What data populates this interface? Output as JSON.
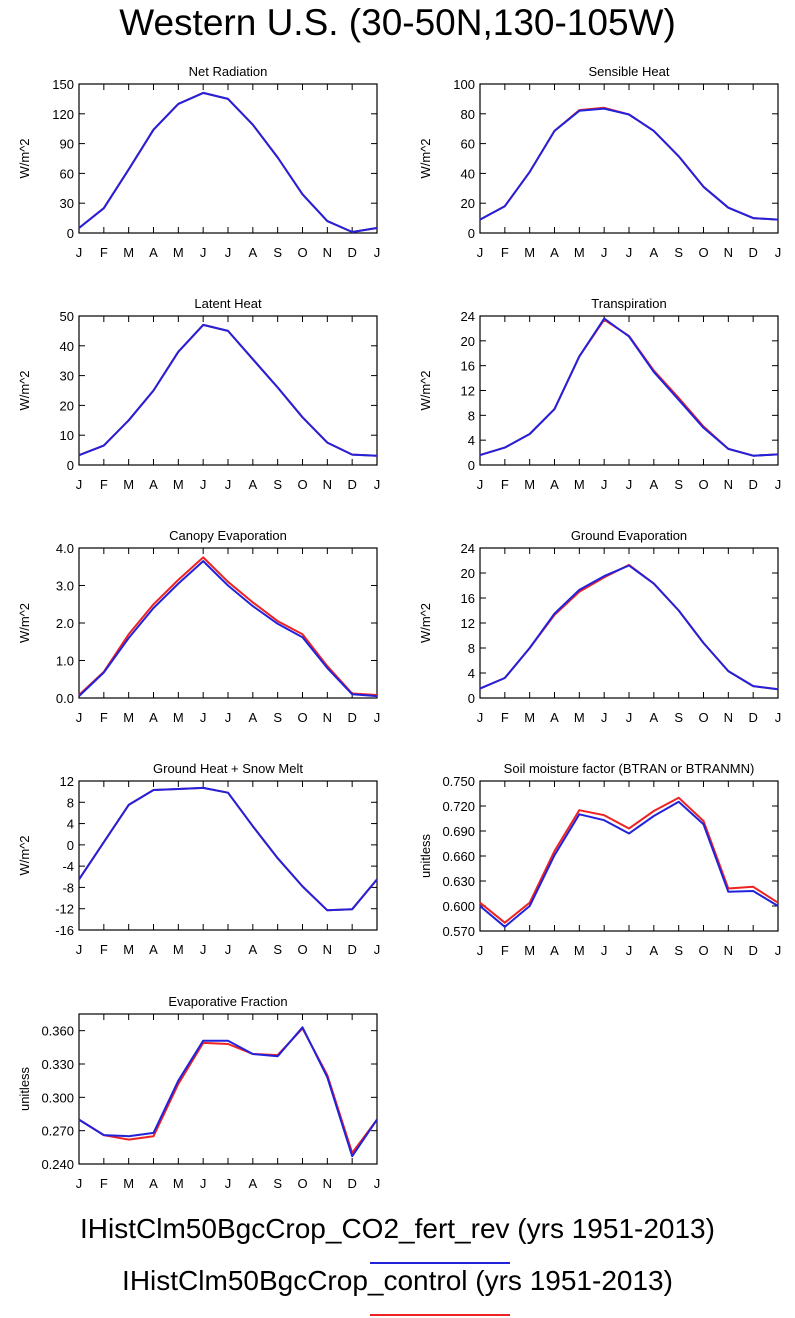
{
  "title": "Western U.S. (30-50N,130-105W)",
  "months": [
    "J",
    "F",
    "M",
    "A",
    "M",
    "J",
    "J",
    "A",
    "S",
    "O",
    "N",
    "D",
    "J"
  ],
  "legend": [
    {
      "label": "IHistClm50BgcCrop_CO2_fert_rev (yrs 1951-2013)",
      "color": "#2222dd"
    },
    {
      "label": "IHistClm50BgcCrop_control (yrs 1951-2013)",
      "color": "#ee2222"
    }
  ],
  "chart_data": [
    {
      "type": "line",
      "title": "Net Radiation",
      "ylabel": "W/m^2",
      "ylim": [
        0,
        150
      ],
      "yticks": [
        "0",
        "30",
        "60",
        "90",
        "120",
        "150"
      ],
      "categories": [
        "J",
        "F",
        "M",
        "A",
        "M",
        "J",
        "J",
        "A",
        "S",
        "O",
        "N",
        "D",
        "J"
      ],
      "series": [
        {
          "name": "IHistClm50BgcCrop_control",
          "color": "#ee2222",
          "values": [
            5,
            25,
            64,
            104,
            130,
            141,
            135,
            109,
            76,
            39,
            12,
            1,
            5
          ]
        },
        {
          "name": "IHistClm50BgcCrop_CO2_fert_rev",
          "color": "#2222dd",
          "values": [
            5,
            25,
            64,
            104,
            130,
            141,
            135,
            109,
            76,
            39,
            12,
            1,
            5
          ]
        }
      ]
    },
    {
      "type": "line",
      "title": "Sensible Heat",
      "ylabel": "W/m^2",
      "ylim": [
        0,
        100
      ],
      "yticks": [
        "0",
        "20",
        "40",
        "60",
        "80",
        "100"
      ],
      "categories": [
        "J",
        "F",
        "M",
        "A",
        "M",
        "J",
        "J",
        "A",
        "S",
        "O",
        "N",
        "D",
        "J"
      ],
      "series": [
        {
          "name": "IHistClm50BgcCrop_control",
          "color": "#ee2222",
          "values": [
            9,
            18,
            41,
            68.5,
            82.5,
            84,
            79.5,
            68.5,
            51.5,
            31,
            17,
            10,
            9
          ]
        },
        {
          "name": "IHistClm50BgcCrop_CO2_fert_rev",
          "color": "#2222dd",
          "values": [
            9,
            18,
            41,
            68.5,
            82,
            83.5,
            79.5,
            68.5,
            51.5,
            31,
            17,
            10,
            9
          ]
        }
      ]
    },
    {
      "type": "line",
      "title": "Latent Heat",
      "ylabel": "W/m^2",
      "ylim": [
        0,
        50
      ],
      "yticks": [
        "0",
        "10",
        "20",
        "30",
        "40",
        "50"
      ],
      "categories": [
        "J",
        "F",
        "M",
        "A",
        "M",
        "J",
        "J",
        "A",
        "S",
        "O",
        "N",
        "D",
        "J"
      ],
      "series": [
        {
          "name": "IHistClm50BgcCrop_control",
          "color": "#ee2222",
          "values": [
            3.3,
            6.5,
            15,
            25,
            38,
            47,
            45,
            35.5,
            26,
            16,
            7.5,
            3.5,
            3.1
          ]
        },
        {
          "name": "IHistClm50BgcCrop_CO2_fert_rev",
          "color": "#2222dd",
          "values": [
            3.3,
            6.5,
            15,
            25,
            38,
            47,
            45,
            35.5,
            26,
            16,
            7.5,
            3.5,
            3.1
          ]
        }
      ]
    },
    {
      "type": "line",
      "title": "Transpiration",
      "ylabel": "W/m^2",
      "ylim": [
        0,
        24
      ],
      "yticks": [
        "0",
        "4",
        "8",
        "12",
        "16",
        "20",
        "24"
      ],
      "categories": [
        "J",
        "F",
        "M",
        "A",
        "M",
        "J",
        "J",
        "A",
        "S",
        "O",
        "N",
        "D",
        "J"
      ],
      "series": [
        {
          "name": "IHistClm50BgcCrop_control",
          "color": "#ee2222",
          "values": [
            1.6,
            2.8,
            5,
            9,
            17.5,
            23.4,
            20.8,
            15.2,
            10.8,
            6.2,
            2.6,
            1.5,
            1.7
          ]
        },
        {
          "name": "IHistClm50BgcCrop_CO2_fert_rev",
          "color": "#2222dd",
          "values": [
            1.6,
            2.8,
            5,
            9,
            17.5,
            23.6,
            20.7,
            15,
            10.5,
            6,
            2.6,
            1.5,
            1.7
          ]
        }
      ]
    },
    {
      "type": "line",
      "title": "Canopy Evaporation",
      "ylabel": "W/m^2",
      "ylim": [
        0,
        4
      ],
      "yticks": [
        "0.0",
        "1.0",
        "2.0",
        "3.0",
        "4.0"
      ],
      "categories": [
        "J",
        "F",
        "M",
        "A",
        "M",
        "J",
        "J",
        "A",
        "S",
        "O",
        "N",
        "D",
        "J"
      ],
      "series": [
        {
          "name": "IHistClm50BgcCrop_control",
          "color": "#ee2222",
          "values": [
            0.08,
            0.7,
            1.7,
            2.5,
            3.15,
            3.75,
            3.1,
            2.55,
            2.05,
            1.7,
            0.85,
            0.12,
            0.08
          ]
        },
        {
          "name": "IHistClm50BgcCrop_CO2_fert_rev",
          "color": "#2222dd",
          "values": [
            0.05,
            0.68,
            1.6,
            2.4,
            3.05,
            3.65,
            3.0,
            2.45,
            1.98,
            1.62,
            0.8,
            0.1,
            0.05
          ]
        }
      ]
    },
    {
      "type": "line",
      "title": "Ground Evaporation",
      "ylabel": "W/m^2",
      "ylim": [
        0,
        24
      ],
      "yticks": [
        "0",
        "4",
        "8",
        "12",
        "16",
        "20",
        "24"
      ],
      "categories": [
        "J",
        "F",
        "M",
        "A",
        "M",
        "J",
        "J",
        "A",
        "S",
        "O",
        "N",
        "D",
        "J"
      ],
      "series": [
        {
          "name": "IHistClm50BgcCrop_control",
          "color": "#ee2222",
          "values": [
            1.5,
            3.2,
            8,
            13.3,
            17,
            19.3,
            21.3,
            18.3,
            14,
            8.8,
            4.3,
            1.9,
            1.4
          ]
        },
        {
          "name": "IHistClm50BgcCrop_CO2_fert_rev",
          "color": "#2222dd",
          "values": [
            1.5,
            3.2,
            8,
            13.5,
            17.3,
            19.5,
            21.2,
            18.3,
            14,
            8.8,
            4.3,
            1.9,
            1.4
          ]
        }
      ]
    },
    {
      "type": "line",
      "title": "Ground Heat + Snow Melt",
      "ylabel": "W/m^2",
      "ylim": [
        -16,
        12
      ],
      "yticks": [
        "-16",
        "-12",
        "-8",
        "-4",
        "0",
        "4",
        "8",
        "12"
      ],
      "categories": [
        "J",
        "F",
        "M",
        "A",
        "M",
        "J",
        "J",
        "A",
        "S",
        "O",
        "N",
        "D",
        "J"
      ],
      "series": [
        {
          "name": "IHistClm50BgcCrop_control",
          "color": "#ee2222",
          "values": [
            -6.5,
            0.5,
            7.5,
            10.3,
            10.5,
            10.7,
            9.8,
            3.5,
            -2.5,
            -7.8,
            -12.3,
            -12.1,
            -6.5
          ]
        },
        {
          "name": "IHistClm50BgcCrop_CO2_fert_rev",
          "color": "#2222dd",
          "values": [
            -6.5,
            0.5,
            7.5,
            10.3,
            10.5,
            10.7,
            9.8,
            3.5,
            -2.5,
            -7.8,
            -12.3,
            -12.1,
            -6.5
          ]
        }
      ]
    },
    {
      "type": "line",
      "title": "Soil moisture factor (BTRAN or BTRANMN)",
      "ylabel": "unitless",
      "ylim": [
        0.57,
        0.75
      ],
      "yticks": [
        "0.570",
        "0.600",
        "0.630",
        "0.660",
        "0.690",
        "0.720",
        "0.750"
      ],
      "categories": [
        "J",
        "F",
        "M",
        "A",
        "M",
        "J",
        "J",
        "A",
        "S",
        "O",
        "N",
        "D",
        "J"
      ],
      "series": [
        {
          "name": "IHistClm50BgcCrop_control",
          "color": "#ee2222",
          "values": [
            0.604,
            0.58,
            0.604,
            0.666,
            0.715,
            0.709,
            0.693,
            0.714,
            0.73,
            0.702,
            0.621,
            0.623,
            0.604
          ]
        },
        {
          "name": "IHistClm50BgcCrop_CO2_fert_rev",
          "color": "#2222dd",
          "values": [
            0.6,
            0.575,
            0.6,
            0.661,
            0.71,
            0.703,
            0.687,
            0.708,
            0.725,
            0.698,
            0.617,
            0.618,
            0.6
          ]
        }
      ]
    },
    {
      "type": "line",
      "title": "Evaporative Fraction",
      "ylabel": "unitless",
      "ylim": [
        0.24,
        0.375
      ],
      "yticks": [
        "0.240",
        "0.270",
        "0.300",
        "0.330",
        "0.360"
      ],
      "categories": [
        "J",
        "F",
        "M",
        "A",
        "M",
        "J",
        "J",
        "A",
        "S",
        "O",
        "N",
        "D",
        "J"
      ],
      "series": [
        {
          "name": "IHistClm50BgcCrop_control",
          "color": "#ee2222",
          "values": [
            0.28,
            0.266,
            0.262,
            0.265,
            0.312,
            0.349,
            0.348,
            0.339,
            0.338,
            0.362,
            0.32,
            0.25,
            0.28
          ]
        },
        {
          "name": "IHistClm50BgcCrop_CO2_fert_rev",
          "color": "#2222dd",
          "values": [
            0.28,
            0.266,
            0.265,
            0.268,
            0.315,
            0.351,
            0.351,
            0.339,
            0.337,
            0.363,
            0.318,
            0.247,
            0.28
          ]
        }
      ]
    }
  ]
}
